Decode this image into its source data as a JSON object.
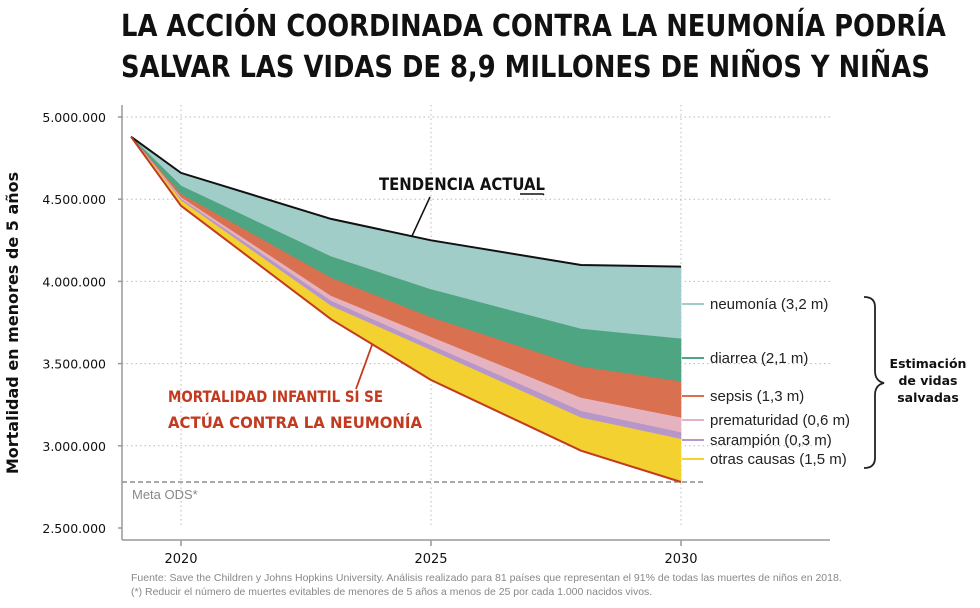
{
  "title": {
    "line1": "LA ACCIÓN COORDINADA CONTRA LA NEUMONÍA PODRÍA",
    "line2": "SALVAR LAS VIDAS DE 8,9 MILLONES DE NIÑOS Y NIÑAS"
  },
  "chart_data": {
    "type": "area",
    "ylabel": "Mortalidad en menores de 5 años",
    "xlabel": "",
    "ylim": [
      2500000,
      5000000
    ],
    "xlim": [
      2018.8,
      2033
    ],
    "y_ticks": [
      {
        "value": 5000000,
        "label": "5.000.000"
      },
      {
        "value": 4500000,
        "label": "4.500.000"
      },
      {
        "value": 4000000,
        "label": "4.000.000"
      },
      {
        "value": 3500000,
        "label": "3.500.000"
      },
      {
        "value": 3000000,
        "label": "3.000.000"
      },
      {
        "value": 2500000,
        "label": "2.500.000"
      }
    ],
    "x_ticks": [
      {
        "value": 2020,
        "label": "2020"
      },
      {
        "value": 2025,
        "label": "2025"
      },
      {
        "value": 2030,
        "label": "2030"
      }
    ],
    "grid": true,
    "x": [
      2019,
      2020,
      2023,
      2025,
      2028,
      2030
    ],
    "boundaries": {
      "actual": [
        4880000,
        4660000,
        4380000,
        4250000,
        4100000,
        4090000
      ],
      "neumonia": [
        4880000,
        4580000,
        4150000,
        3950000,
        3710000,
        3650000
      ],
      "diarrea": [
        4880000,
        4530000,
        4020000,
        3780000,
        3480000,
        3390000
      ],
      "sepsis": [
        4880000,
        4510000,
        3910000,
        3660000,
        3290000,
        3170000
      ],
      "prem": [
        4880000,
        4500000,
        3880000,
        3610000,
        3210000,
        3080000
      ],
      "saramp": [
        4880000,
        4490000,
        3850000,
        3580000,
        3170000,
        3040000
      ],
      "otras": [
        4880000,
        4460000,
        3770000,
        3400000,
        2970000,
        2780000
      ]
    },
    "series": [
      {
        "name": "neumonía (3,2 m)",
        "upper": "actual",
        "lower": "neumonia",
        "color": "#a1cdc9",
        "label_value": 3825000
      },
      {
        "name": "diarrea (2,1 m)",
        "upper": "neumonia",
        "lower": "diarrea",
        "color": "#4ea582",
        "label_value": 3520000
      },
      {
        "name": "sepsis (1,3 m)",
        "upper": "diarrea",
        "lower": "sepsis",
        "color": "#d9704f",
        "label_value": 3280000
      },
      {
        "name": "prematuridad (0,6 m)",
        "upper": "sepsis",
        "lower": "prem",
        "color": "#e5b3c0",
        "label_value": 3125000
      },
      {
        "name": "sarampión (0,3 m)",
        "upper": "prem",
        "lower": "saramp",
        "color": "#b797c9",
        "label_value": 3060000
      },
      {
        "name": "otras causas (1,5 m)",
        "upper": "saramp",
        "lower": "otras",
        "color": "#f2d130",
        "label_value": 2910000
      }
    ],
    "bracket_label": [
      "Estimación",
      "de vidas",
      "salvadas"
    ],
    "annotations": {
      "tendencia": "TENDENCIA ACTUAL",
      "mortalidad_line1": "MORTALIDAD INFANTIL SI SE",
      "mortalidad_line2": "ACTÚA CONTRA LA NEUMONÍA",
      "meta": "Meta ODS*",
      "meta_value": 2780000
    },
    "colors": {
      "actual_line": "#111111",
      "projected_line": "#c23a1f",
      "annotation_red": "#c23a1f",
      "axis": "#999999",
      "grid": "#bbbbbb",
      "meta_line": "#777777"
    }
  },
  "footnote": {
    "line1": "Fuente: Save the Children y Johns Hopkins University. Análisis realizado para 81 países que representan el 91% de todas las muertes de niños en 2018.",
    "line2": "(*) Reducir el número de muertes evitables de menores de 5 años a menos de 25 por cada 1.000 nacidos vivos."
  }
}
